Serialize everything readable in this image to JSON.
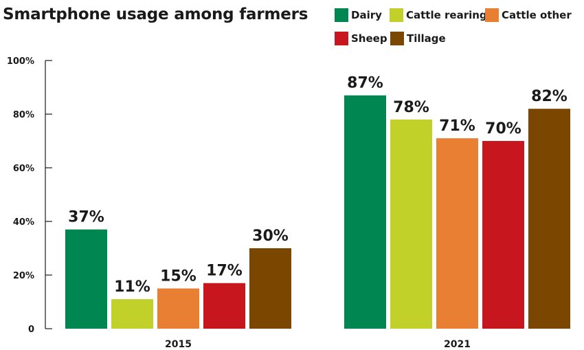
{
  "chart_data": {
    "type": "bar",
    "title": "Smartphone usage among farmers",
    "categories": [
      "2015",
      "2021"
    ],
    "series": [
      {
        "name": "Dairy",
        "color": "#008751",
        "values": [
          37,
          87
        ],
        "labels": [
          "37%",
          "87%"
        ]
      },
      {
        "name": "Cattle rearing",
        "color": "#c2d02a",
        "values": [
          11,
          78
        ],
        "labels": [
          "11%",
          "78%"
        ]
      },
      {
        "name": "Cattle other",
        "color": "#e87f32",
        "values": [
          15,
          71
        ],
        "labels": [
          "15%",
          "71%"
        ]
      },
      {
        "name": "Sheep",
        "color": "#c8161e",
        "values": [
          17,
          70
        ],
        "labels": [
          "17%",
          "70%"
        ]
      },
      {
        "name": "Tillage",
        "color": "#7b4700",
        "values": [
          30,
          82
        ],
        "labels": [
          "30%",
          "82%"
        ]
      }
    ],
    "ylim": [
      0,
      100
    ],
    "yticks": [
      0,
      20,
      40,
      60,
      80,
      100
    ],
    "ytick_labels": [
      "0",
      "20%",
      "40%",
      "60%",
      "80%",
      "100%"
    ],
    "legend": "top-right",
    "grid": false
  }
}
